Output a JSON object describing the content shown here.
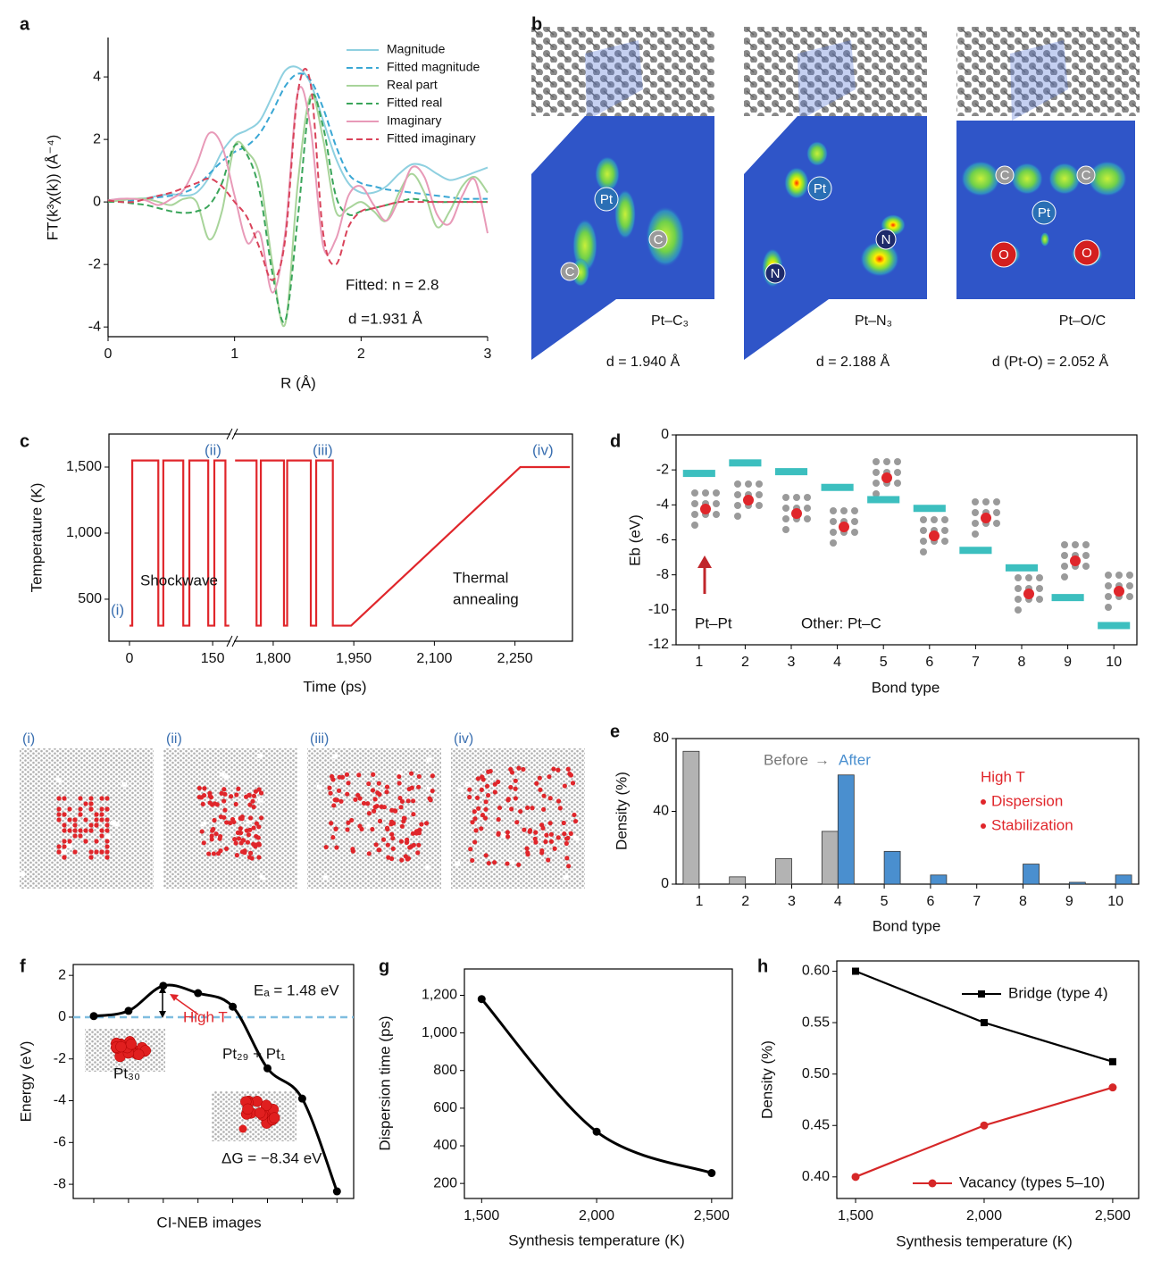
{
  "panel_labels": [
    "a",
    "b",
    "c",
    "d",
    "e",
    "f",
    "g",
    "h"
  ],
  "structures": [
    {
      "label": "Pt–C₃",
      "distance": "d = 1.940 Å",
      "atoms": [
        "Pt",
        "C",
        "C"
      ]
    },
    {
      "label": "Pt–N₃",
      "distance": "d = 2.188 Å",
      "atoms": [
        "Pt",
        "N",
        "N"
      ]
    },
    {
      "label": "Pt–O/C",
      "distance": "d (Pt-O) = 2.052 Å",
      "atoms": [
        "C",
        "C",
        "Pt",
        "O",
        "O"
      ]
    }
  ],
  "snapshots": [
    "(i)",
    "(ii)",
    "(iii)",
    "(iv)"
  ],
  "chart_data": [
    {
      "type": "line",
      "xlabel": "R (Å)",
      "ylabel": "FT(k³χ(k)) (Å⁻⁴)",
      "smooth": true,
      "legend": "upper right",
      "x": [
        0,
        0.1,
        0.2,
        0.3,
        0.4,
        0.5,
        0.6,
        0.7,
        0.8,
        0.9,
        1.0,
        1.1,
        1.2,
        1.3,
        1.4,
        1.5,
        1.6,
        1.7,
        1.8,
        1.9,
        2.0,
        2.1,
        2.2,
        2.3,
        2.4,
        2.5,
        2.6,
        2.7,
        2.8,
        2.9,
        3.0
      ],
      "series": [
        {
          "name": "Magnitude",
          "color": "#8fd0e0",
          "dashed": false,
          "values": [
            0.05,
            0.1,
            0.1,
            0.12,
            0.2,
            0.25,
            0.2,
            0.3,
            0.8,
            1.6,
            2.1,
            2.3,
            2.6,
            3.4,
            4.2,
            4.3,
            3.8,
            2.6,
            1.4,
            0.6,
            0.3,
            0.3,
            0.5,
            0.9,
            1.2,
            1.15,
            0.9,
            0.7,
            0.8,
            0.95,
            1.1
          ]
        },
        {
          "name": "Fitted magnitude",
          "color": "#3aa7d4",
          "dashed": true,
          "values": [
            0.05,
            0.05,
            0.05,
            0.1,
            0.15,
            0.2,
            0.3,
            0.5,
            0.9,
            1.3,
            1.6,
            1.8,
            2.2,
            2.9,
            3.7,
            4.1,
            3.9,
            3.0,
            1.8,
            0.9,
            0.6,
            0.5,
            0.4,
            0.35,
            0.3,
            0.25,
            0.2,
            0.15,
            0.1,
            0.1,
            0.1
          ]
        },
        {
          "name": "Real part",
          "color": "#a8d49a",
          "dashed": false,
          "values": [
            0,
            0.05,
            0.1,
            0.1,
            0,
            -0.1,
            0.1,
            0,
            -1.2,
            -0.3,
            1.8,
            1.6,
            0.8,
            -2.0,
            -3.9,
            0.6,
            3.4,
            2.0,
            -0.3,
            -0.2,
            0,
            -0.3,
            -0.6,
            0.3,
            0.9,
            0.3,
            -0.8,
            -0.3,
            0.5,
            0.8,
            0.3
          ]
        },
        {
          "name": "Fitted real",
          "color": "#3aa55a",
          "dashed": true,
          "values": [
            0,
            0,
            -0.05,
            -0.1,
            -0.2,
            -0.3,
            -0.35,
            -0.3,
            -0.1,
            0.6,
            1.8,
            1.5,
            0.3,
            -2.3,
            -3.8,
            -0.5,
            3.3,
            2.4,
            0.2,
            -0.4,
            -0.3,
            -0.2,
            -0.1,
            0,
            0.1,
            0.05,
            0,
            0,
            0,
            0,
            0
          ]
        },
        {
          "name": "Imaginary",
          "color": "#e89ab8",
          "dashed": false,
          "values": [
            0.05,
            0.1,
            0.1,
            0.05,
            -0.1,
            0.1,
            0.4,
            1.2,
            2.2,
            1.8,
            0.2,
            -1.3,
            -1.0,
            -2.9,
            -1.0,
            3.5,
            2.4,
            -1.4,
            -1.2,
            0.2,
            0.5,
            -0.1,
            -0.6,
            0.1,
            1.1,
            0.8,
            -0.4,
            -0.7,
            0.2,
            0.7,
            -1.0
          ]
        },
        {
          "name": "Fitted imaginary",
          "color": "#d9435a",
          "dashed": true,
          "values": [
            0.05,
            0,
            0,
            0.1,
            0.2,
            0.3,
            0.45,
            0.6,
            0.75,
            0.5,
            0,
            -0.5,
            -1.5,
            -2.5,
            -1.2,
            3.5,
            3.8,
            -1.0,
            -2.0,
            -0.8,
            -0.3,
            -0.2,
            -0.1,
            0,
            0,
            0,
            0,
            0,
            0,
            0,
            0
          ]
        }
      ],
      "xlim": [
        0,
        3
      ],
      "xticks": [
        0,
        1,
        2,
        3
      ],
      "ylim": [
        -4.31,
        5.26
      ],
      "yticks": [
        -4,
        -2,
        0,
        2,
        4
      ],
      "annotations": [
        "Fitted: n = 2.8",
        "d =1.931 Å"
      ]
    },
    {
      "type": "line",
      "xlabel": "Time (ps)",
      "ylabel": "Temperature (K)",
      "smooth": false,
      "x": [
        0,
        5,
        5,
        52,
        52,
        61,
        61,
        97,
        97,
        108,
        108,
        142,
        142,
        153,
        153,
        173,
        173,
        180,
        182,
        1729,
        1769,
        1769,
        1777,
        1777,
        1820,
        1820,
        1826,
        1826,
        1870,
        1870,
        1880,
        1880,
        1911,
        1911,
        1945,
        2260,
        2352
      ],
      "series": [
        {
          "name": "Temperature",
          "color": "#e0262b",
          "dashed": false,
          "values": [
            300,
            300,
            1550,
            1550,
            300,
            300,
            1550,
            1550,
            300,
            300,
            1550,
            1550,
            300,
            300,
            1550,
            1550,
            300,
            300,
            null,
            1550,
            1550,
            300,
            300,
            1550,
            1550,
            300,
            300,
            1550,
            1550,
            300,
            300,
            1550,
            1550,
            300,
            300,
            1500,
            1500
          ]
        }
      ],
      "xlim": [
        -37,
        2357
      ],
      "xbreak": [
        182,
        1727
      ],
      "xticks": [
        0,
        150,
        {
          "value": 1800,
          "label": "1,800"
        },
        {
          "value": 1950,
          "label": "1,950"
        },
        {
          "value": 2100,
          "label": "2,100"
        },
        {
          "value": 2250,
          "label": "2,250"
        }
      ],
      "ylim": [
        182,
        1750
      ],
      "yticks": [
        500,
        {
          "value": 1000,
          "label": "1,000"
        },
        {
          "value": 1500,
          "label": "1,500"
        }
      ],
      "annotations": [
        "(i)",
        "(ii)",
        "(iii)",
        "(iv)",
        "Shockwave",
        "Thermal",
        "annealing"
      ]
    },
    {
      "type": "scatter",
      "marker": "line",
      "xlabel": "Bond type",
      "ylabel": "Eb (eV)",
      "color": "#3cbfbf",
      "categories": [
        "1",
        "2",
        "3",
        "4",
        "5",
        "6",
        "7",
        "8",
        "9",
        "10"
      ],
      "values": [
        -2.2,
        -1.6,
        -2.1,
        -3.0,
        -3.7,
        -4.2,
        -6.6,
        -7.6,
        -9.3,
        -10.9
      ],
      "ylim": [
        -12,
        0
      ],
      "yticks": [
        0,
        -2,
        -4,
        -6,
        -8,
        -10,
        -12
      ],
      "annotations": [
        "Pt–Pt",
        "Other: Pt–C"
      ]
    },
    {
      "type": "bar",
      "xlabel": "Bond type",
      "ylabel": "Density (%)",
      "legend_separator": "→",
      "categories": [
        "1",
        "2",
        "3",
        "4",
        "5",
        "6",
        "7",
        "8",
        "9",
        "10"
      ],
      "series": [
        {
          "name": "Before",
          "color": "#b3b3b3",
          "values": [
            73,
            4,
            14,
            29,
            0,
            0,
            0,
            0,
            0,
            0
          ]
        },
        {
          "name": "After",
          "color": "#4a8fcf",
          "values": [
            0,
            0,
            0,
            60,
            18,
            5,
            0,
            11,
            1,
            5
          ]
        }
      ],
      "ylim": [
        0,
        80
      ],
      "yticks": [
        0,
        40,
        80
      ],
      "annotations": [
        "High T",
        "Dispersion",
        "Stabilization"
      ]
    },
    {
      "type": "line",
      "xlabel": "CI-NEB images",
      "ylabel": "Energy (eV)",
      "smooth": true,
      "marker": "circle",
      "color": "#000000",
      "categories": [
        null,
        null,
        null,
        null,
        null,
        null,
        null,
        null
      ],
      "values": [
        0.05,
        0.3,
        1.5,
        1.15,
        0.5,
        -2.45,
        -3.9,
        -8.34
      ],
      "reference_line": {
        "value": 0,
        "color": "#7fbde0",
        "dashed": true
      },
      "ylim": [
        -8.68,
        2.52
      ],
      "yticks": [
        2,
        0,
        -2,
        -4,
        -6,
        -8
      ],
      "annotations": [
        "Eₐ = 1.48 eV",
        "High T",
        "Pt₃₀",
        "Pt₂₉ + Pt₁",
        "ΔG = −8.34 eV"
      ]
    },
    {
      "type": "line",
      "xlabel": "Synthesis temperature (K)",
      "ylabel": "Dispersion time (ps)",
      "smooth": true,
      "marker": "circle",
      "color": "#000000",
      "x": [
        1500,
        2000,
        2500
      ],
      "values": [
        1180,
        475,
        255
      ],
      "xlim": [
        1425,
        2590
      ],
      "xticks": [
        {
          "value": 1500,
          "label": "1,500"
        },
        {
          "value": 2000,
          "label": "2,000"
        },
        {
          "value": 2500,
          "label": "2,500"
        }
      ],
      "ylim": [
        120,
        1340
      ],
      "yticks": [
        200,
        400,
        600,
        800,
        {
          "value": 1000,
          "label": "1,000"
        },
        {
          "value": 1200,
          "label": "1,200"
        }
      ]
    },
    {
      "type": "line",
      "xlabel": "Synthesis temperature (K)",
      "ylabel": "Density (%)",
      "smooth": false,
      "x": [
        1500,
        2000,
        2500
      ],
      "series": [
        {
          "name": "Bridge (type 4)",
          "color": "#000000",
          "marker": "square",
          "values": [
            0.6,
            0.55,
            0.512
          ]
        },
        {
          "name": "Vacancy (types 5–10)",
          "color": "#d62728",
          "marker": "circle",
          "values": [
            0.4,
            0.45,
            0.487
          ]
        }
      ],
      "xlim": [
        1427,
        2601
      ],
      "xticks": [
        {
          "value": 1500,
          "label": "1,500"
        },
        {
          "value": 2000,
          "label": "2,000"
        },
        {
          "value": 2500,
          "label": "2,500"
        }
      ],
      "ylim": [
        0.379,
        0.61
      ],
      "yticks": [
        {
          "value": 0.4,
          "label": "0.40"
        },
        {
          "value": 0.45,
          "label": "0.45"
        },
        {
          "value": 0.5,
          "label": "0.50"
        },
        {
          "value": 0.55,
          "label": "0.55"
        },
        {
          "value": 0.6,
          "label": "0.60"
        }
      ]
    }
  ]
}
